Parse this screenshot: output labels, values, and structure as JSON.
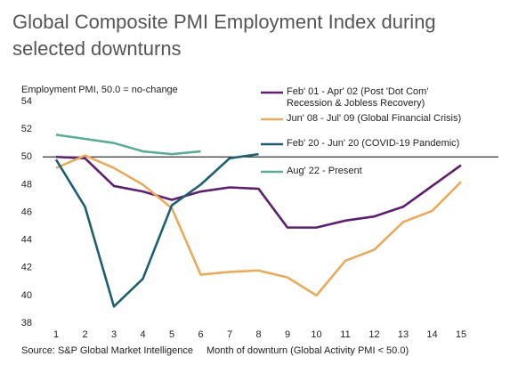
{
  "chart_data": {
    "type": "line",
    "title": "Global Composite PMI Employment Index during selected downturns",
    "ylabel": "Employment PMI, 50.0 = no-change",
    "xlabel": "Month of downturn (Global Activity PMI < 50.0)",
    "source": "Source: S&P Global Market Intelligence",
    "x": [
      1,
      2,
      3,
      4,
      5,
      6,
      7,
      8,
      9,
      10,
      11,
      12,
      13,
      14,
      15
    ],
    "xlim": [
      1,
      15
    ],
    "xticks": [
      1,
      2,
      3,
      4,
      5,
      6,
      7,
      8,
      9,
      10,
      11,
      12,
      13,
      14,
      15
    ],
    "ylim": [
      38,
      54
    ],
    "yticks": [
      38,
      40,
      42,
      44,
      46,
      48,
      50,
      52,
      54
    ],
    "reference_line": 50,
    "grid": false,
    "series": [
      {
        "name": "Feb' 01 - Apr' 02 (Post 'Dot Com' Recession & Jobless Recovery)",
        "color": "#5c206f",
        "values": [
          50.0,
          49.9,
          47.9,
          47.5,
          46.9,
          47.5,
          47.8,
          47.7,
          44.9,
          44.9,
          45.4,
          45.7,
          46.4,
          47.9,
          49.4
        ]
      },
      {
        "name": "Jun' 08 - Jul' 09 (Global Financial Crisis)",
        "color": "#e8aa5c",
        "values": [
          49.2,
          50.1,
          49.2,
          48.0,
          46.3,
          41.5,
          41.7,
          41.8,
          41.3,
          40.0,
          42.5,
          43.3,
          45.3,
          46.1,
          48.2
        ]
      },
      {
        "name": "Feb' 20 - Jun' 20 (COVID-19 Pandemic)",
        "color": "#1d5f72",
        "values": [
          49.8,
          46.4,
          39.2,
          41.2,
          46.5,
          48.0,
          49.9,
          50.2,
          null,
          null,
          null,
          null,
          null,
          null,
          null
        ]
      },
      {
        "name": "Aug' 22 - Present",
        "color": "#5aab98",
        "values": [
          51.6,
          51.3,
          51.0,
          50.4,
          50.2,
          50.4,
          null,
          null,
          null,
          null,
          null,
          null,
          null,
          null,
          null
        ]
      }
    ]
  }
}
